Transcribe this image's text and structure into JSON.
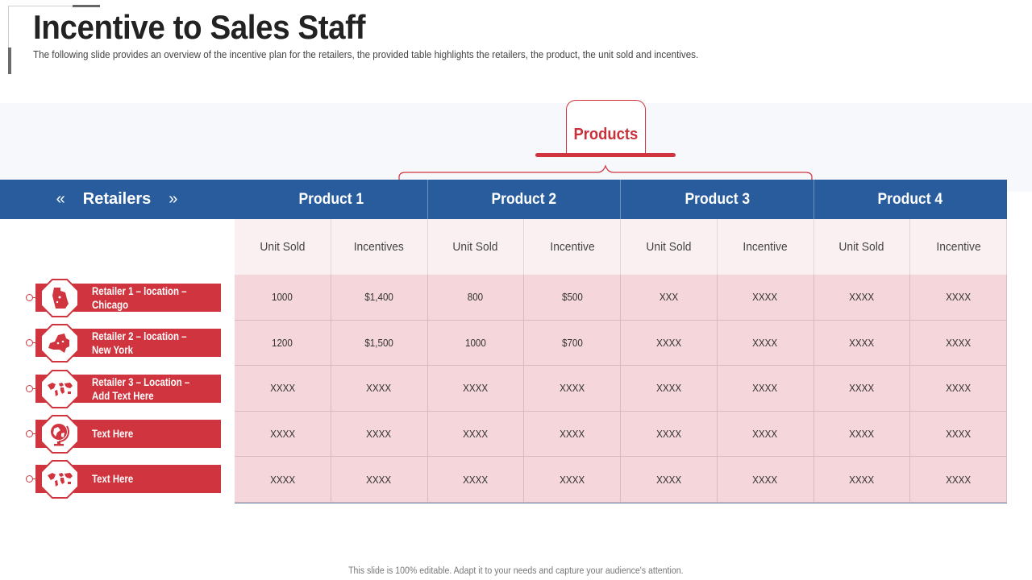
{
  "slide": {
    "title": "Incentive to Sales Staff",
    "subtitle": "The following slide provides an overview of the incentive plan for the retailers, the provided table highlights the retailers, the product, the unit sold and incentives.",
    "footer": "This slide is 100% editable. Adapt it to your needs and capture your audience's attention."
  },
  "products_tab": {
    "label": "Products"
  },
  "header": {
    "retailers_label": "Retailers",
    "prev_icon": "«",
    "next_icon": "»",
    "products": [
      "Product 1",
      "Product 2",
      "Product 3",
      "Product 4"
    ]
  },
  "subheaders": [
    "Unit Sold",
    "Incentives",
    "Unit Sold",
    "Incentive",
    "Unit Sold",
    "Incentive",
    "Unit Sold",
    "Incentive"
  ],
  "rows": [
    [
      "1000",
      "$1,400",
      "800",
      "$500",
      "XXX",
      "XXXX",
      "XXXX",
      "XXXX"
    ],
    [
      "1200",
      "$1,500",
      "1000",
      "$700",
      "XXXX",
      "XXXX",
      "XXXX",
      "XXXX"
    ],
    [
      "XXXX",
      "XXXX",
      "XXXX",
      "XXXX",
      "XXXX",
      "XXXX",
      "XXXX",
      "XXXX"
    ],
    [
      "XXXX",
      "XXXX",
      "XXXX",
      "XXXX",
      "XXXX",
      "XXXX",
      "XXXX",
      "XXXX"
    ],
    [
      "XXXX",
      "XXXX",
      "XXXX",
      "XXXX",
      "XXXX",
      "XXXX",
      "XXXX",
      "XXXX"
    ]
  ],
  "retailers": [
    {
      "line1": "Retailer 1 – location –",
      "line2": "Chicago",
      "icon": "chicago-map-icon"
    },
    {
      "line1": "Retailer 2 – location –",
      "line2": "New York",
      "icon": "new-york-map-icon"
    },
    {
      "line1": "Retailer 3 – Location –",
      "line2": "Add Text Here",
      "icon": "world-map-icon"
    },
    {
      "line1": "Text Here",
      "line2": "",
      "icon": "globe-icon"
    },
    {
      "line1": "Text Here",
      "line2": "",
      "icon": "world-map-icon"
    }
  ],
  "colors": {
    "accent_red": "#d0343e",
    "header_blue": "#285c9c",
    "cell_pink": "#f5d6da"
  }
}
